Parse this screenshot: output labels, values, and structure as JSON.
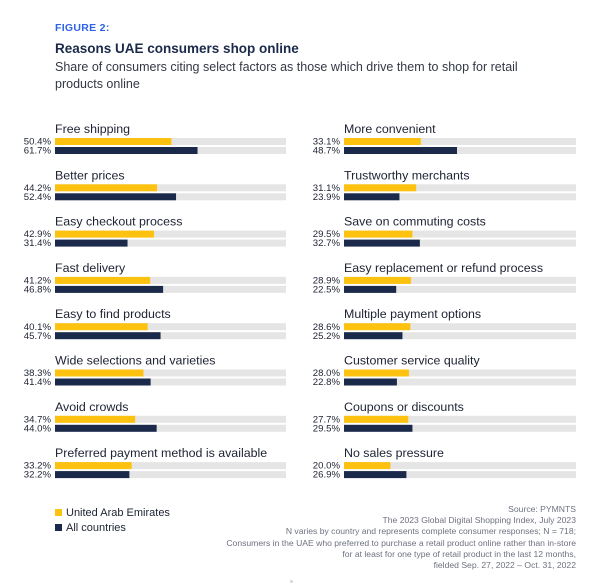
{
  "figure_label": "FIGURE 2:",
  "chart_data": {
    "type": "bar",
    "orientation": "horizontal",
    "title": "Reasons UAE consumers shop online",
    "subtitle": "Share of consumers citing select factors as those which drive them to shop for retail products online",
    "xlim": [
      0,
      100
    ],
    "unit": "%",
    "categories": [
      "Free shipping",
      "Better prices",
      "Easy checkout process",
      "Fast delivery",
      "Easy to find products",
      "Wide selections and varieties",
      "Avoid crowds",
      "Preferred payment method is available",
      "More convenient",
      "Trustworthy merchants",
      "Save on commuting costs",
      "Easy replacement or refund process",
      "Multiple payment options",
      "Customer service quality",
      "Coupons or discounts",
      "No sales pressure"
    ],
    "series": [
      {
        "name": "United Arab Emirates",
        "color": "#fcc20f",
        "values": [
          50.4,
          44.2,
          42.9,
          41.2,
          40.1,
          38.3,
          34.7,
          33.2,
          33.1,
          31.1,
          29.5,
          28.9,
          28.6,
          28.0,
          27.7,
          20.0
        ]
      },
      {
        "name": "All countries",
        "color": "#1b2a4a",
        "values": [
          61.7,
          52.4,
          31.4,
          46.8,
          45.7,
          41.4,
          44.0,
          32.2,
          48.7,
          23.9,
          32.7,
          22.5,
          25.2,
          22.8,
          29.5,
          26.9
        ]
      }
    ],
    "track_color": "#e5e5e5",
    "legend_position": "bottom-left"
  },
  "legend": {
    "uae": "United Arab Emirates",
    "all": "All countries"
  },
  "source_lines": [
    "Source: PYMNTS",
    "The 2023 Global Digital Shopping Index, July 2023",
    "N varies by country and represents complete consumer responses; N = 718;",
    "Consumers in the UAE who preferred to purchase a retail product online rather than in-store",
    "for at least for one type of retail product in the last 12 months,",
    "fielded Sep. 27, 2022 – Oct. 31, 2022"
  ]
}
